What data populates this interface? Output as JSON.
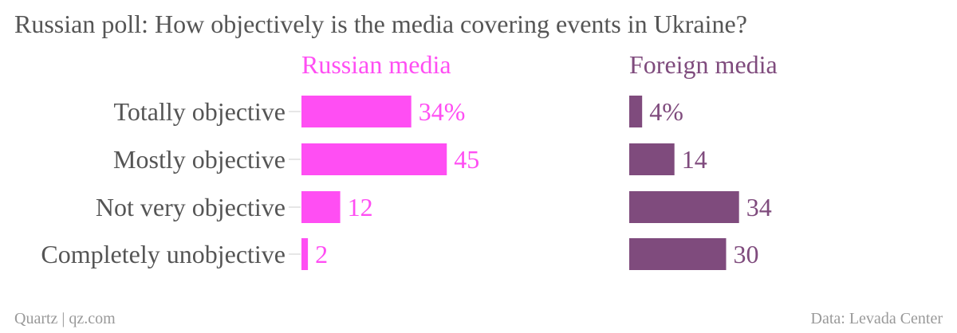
{
  "header": {
    "title": "Russian poll: How objectively is the media covering events in Ukraine?"
  },
  "footer": {
    "source_left": "Quartz | qz.com",
    "source_right": "Data: Levada Center"
  },
  "colors": {
    "russian_media": "#ff4ef3",
    "foreign_media": "#7f4b7d",
    "category_text": "#555555",
    "tick": "#cccccc"
  },
  "chart_data": {
    "type": "bar",
    "orientation": "horizontal",
    "title": "Russian poll: How objectively is the media covering events in Ukraine?",
    "categories": [
      "Totally objective",
      "Mostly objective",
      "Not very objective",
      "Completely unobjective"
    ],
    "unit": "%",
    "xlim": [
      0,
      50
    ],
    "grid": false,
    "panels": [
      {
        "name": "Russian media",
        "values": [
          34,
          45,
          12,
          2
        ],
        "value_labels": [
          "34%",
          "45",
          "12",
          "2"
        ],
        "color": "#ff4ef3"
      },
      {
        "name": "Foreign media",
        "values": [
          4,
          14,
          34,
          30
        ],
        "value_labels": [
          "4%",
          "14",
          "34",
          "30"
        ],
        "color": "#7f4b7d"
      }
    ]
  }
}
